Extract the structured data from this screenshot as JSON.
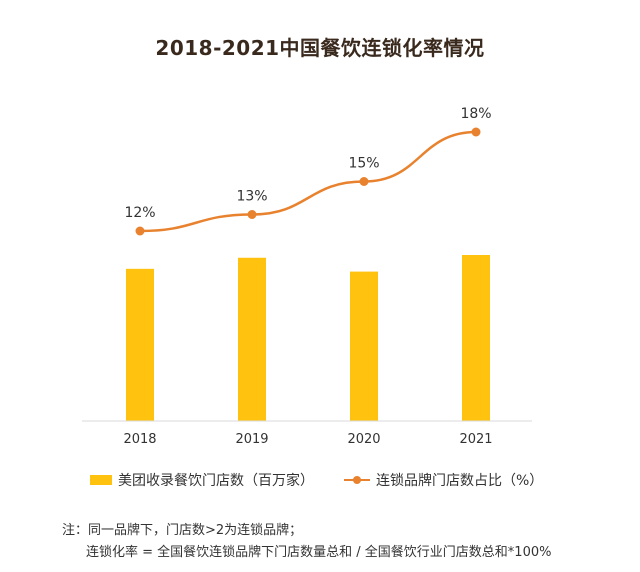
{
  "chart_data": {
    "type": "bar+line",
    "title": "2018-2021中国餐饮连锁化率情况",
    "categories": [
      "2018",
      "2019",
      "2020",
      "2021"
    ],
    "series": [
      {
        "name": "美团收录餐饮门店数（百万家）",
        "type": "bar",
        "values": [
          5.5,
          5.9,
          5.4,
          6.0
        ]
      },
      {
        "name": "连锁品牌门店数占比（%）",
        "type": "line",
        "values": [
          12,
          13,
          15,
          18
        ],
        "labels": [
          "12%",
          "13%",
          "15%",
          "18%"
        ]
      }
    ],
    "colors": {
      "bar": "#FFC20E",
      "line": "#E8822E",
      "axis": "#D9D9D9"
    },
    "legend": [
      "美团收录餐饮门店数（百万家）",
      "连锁品牌门店数占比（%）"
    ]
  },
  "notes": [
    "注：同一品牌下，门店数>2为连锁品牌；",
    "连锁化率 = 全国餐饮连锁品牌下门店数量总和 / 全国餐饮行业门店数总和*100%"
  ]
}
